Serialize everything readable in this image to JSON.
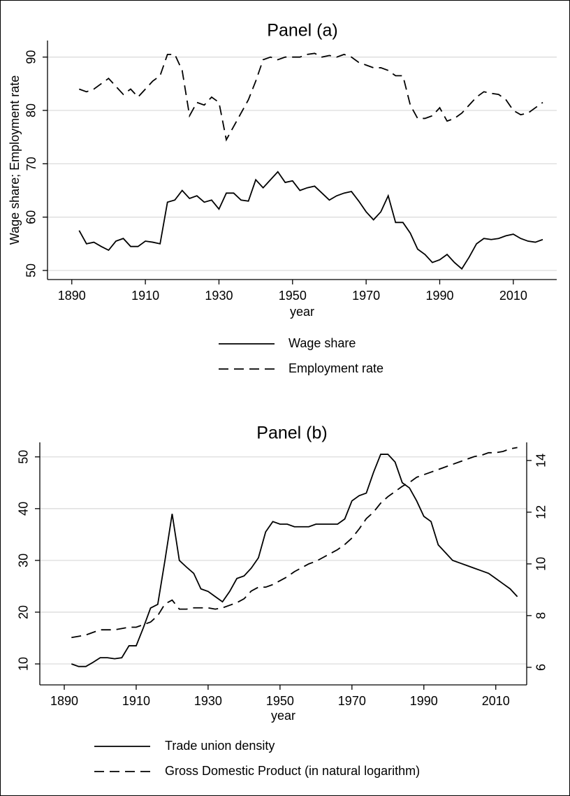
{
  "chart_data": [
    {
      "type": "line",
      "title": "Panel (a)",
      "x_label": "year",
      "y_label": "Wage share; Employment rate",
      "x": [
        1892,
        1894,
        1896,
        1898,
        1900,
        1902,
        1904,
        1906,
        1908,
        1910,
        1912,
        1914,
        1916,
        1918,
        1920,
        1922,
        1924,
        1926,
        1928,
        1930,
        1932,
        1934,
        1936,
        1938,
        1940,
        1942,
        1944,
        1946,
        1948,
        1950,
        1952,
        1954,
        1956,
        1958,
        1960,
        1962,
        1964,
        1966,
        1968,
        1970,
        1972,
        1974,
        1976,
        1978,
        1980,
        1982,
        1984,
        1986,
        1988,
        1990,
        1992,
        1994,
        1996,
        1998,
        2000,
        2002,
        2004,
        2006,
        2008,
        2010,
        2012,
        2014,
        2016,
        2018
      ],
      "series": [
        {
          "name": "Wage share",
          "color": "#000000",
          "style": "solid",
          "values": [
            57.5,
            55,
            55.3,
            54.5,
            53.8,
            55.5,
            56,
            54.5,
            54.5,
            55.5,
            55.3,
            55,
            62.8,
            63.2,
            65,
            63.5,
            64,
            62.8,
            63.2,
            61.5,
            64.5,
            64.5,
            63.2,
            63,
            67,
            65.5,
            67,
            68.5,
            66.5,
            66.8,
            65,
            65.5,
            65.8,
            64.5,
            63.2,
            64,
            64.5,
            64.8,
            63,
            61,
            59.5,
            61,
            64,
            59,
            59,
            57,
            54,
            53,
            51.5,
            52,
            53,
            51.5,
            50.3,
            52.5,
            55,
            56,
            55.8,
            56,
            56.5,
            56.8,
            56,
            55.5,
            55.3,
            55.8
          ]
        },
        {
          "name": "Employment rate",
          "color": "#000000",
          "style": "dashed",
          "values": [
            84,
            83.5,
            84,
            85,
            86,
            84.5,
            83,
            84,
            82.5,
            84,
            85.5,
            86.5,
            90.5,
            90.5,
            87.5,
            79,
            81.5,
            81,
            82.5,
            81.5,
            74.5,
            77,
            79.5,
            82,
            85.5,
            89.5,
            90,
            89.5,
            90,
            90,
            90,
            90.5,
            90.7,
            90,
            90.3,
            90,
            90.5,
            90,
            89,
            88.5,
            88,
            88,
            87.5,
            86.5,
            86.5,
            81,
            78.5,
            78.5,
            79,
            80.5,
            78,
            78.5,
            79.5,
            81,
            82.5,
            83.5,
            83.2,
            83,
            82,
            80,
            79.2,
            79.5,
            80.5,
            81.5
          ]
        }
      ],
      "xlim": [
        1883.4,
        2021.8
      ],
      "xticks": [
        1890,
        1910,
        1930,
        1950,
        1970,
        1990,
        2010
      ],
      "ylim": [
        48.3,
        93.1
      ],
      "yticks": [
        50,
        60,
        70,
        80,
        90
      ],
      "grid": true,
      "legend": "bottom"
    },
    {
      "type": "line",
      "title": "Panel (b)",
      "x_label": "year",
      "x": [
        1892,
        1894,
        1896,
        1898,
        1900,
        1902,
        1904,
        1906,
        1908,
        1910,
        1912,
        1914,
        1916,
        1918,
        1920,
        1922,
        1924,
        1926,
        1928,
        1930,
        1932,
        1934,
        1936,
        1938,
        1940,
        1942,
        1944,
        1946,
        1948,
        1950,
        1952,
        1954,
        1956,
        1958,
        1960,
        1962,
        1964,
        1966,
        1968,
        1970,
        1972,
        1974,
        1976,
        1978,
        1980,
        1982,
        1984,
        1986,
        1988,
        1990,
        1992,
        1994,
        1996,
        1998,
        2000,
        2002,
        2004,
        2006,
        2008,
        2010,
        2012,
        2014,
        2016
      ],
      "series": [
        {
          "name": "Trade union density",
          "color": "#000000",
          "style": "solid",
          "values": [
            10,
            9.5,
            9.5,
            10.3,
            11.2,
            11.2,
            11,
            11.2,
            13.5,
            13.5,
            17,
            20.8,
            21.5,
            30,
            39,
            30,
            28.7,
            27.5,
            24.5,
            24,
            23,
            22,
            24,
            26.5,
            27,
            28.5,
            30.5,
            35.5,
            37.5,
            37,
            37,
            36.5,
            36.5,
            36.5,
            37,
            37,
            37,
            37,
            38,
            41.5,
            42.5,
            43,
            47,
            50.5,
            50.5,
            49,
            45,
            44,
            41.5,
            38.5,
            37.5,
            33,
            31.5,
            30,
            29.5,
            29,
            28.5,
            28,
            27.5,
            26.5,
            25.5,
            24.5,
            23
          ]
        },
        {
          "name": "Gross Domestic Product (in natural logarithm)",
          "color": "#000000",
          "style": "dashed",
          "axis": "y2",
          "values": [
            7.15,
            7.2,
            7.25,
            7.35,
            7.45,
            7.45,
            7.45,
            7.5,
            7.55,
            7.55,
            7.65,
            7.75,
            8.0,
            8.45,
            8.6,
            8.25,
            8.25,
            8.3,
            8.3,
            8.3,
            8.25,
            8.3,
            8.4,
            8.5,
            8.65,
            8.95,
            9.1,
            9.1,
            9.2,
            9.35,
            9.5,
            9.7,
            9.85,
            10.0,
            10.1,
            10.25,
            10.4,
            10.55,
            10.75,
            11.0,
            11.35,
            11.75,
            12.0,
            12.35,
            12.6,
            12.8,
            13.0,
            13.15,
            13.35,
            13.45,
            13.55,
            13.65,
            13.75,
            13.85,
            13.95,
            14.05,
            14.15,
            14.2,
            14.3,
            14.3,
            14.35,
            14.45,
            14.5
          ]
        }
      ],
      "xlim": [
        1883.2,
        2018.6
      ],
      "xticks": [
        1890,
        1910,
        1930,
        1950,
        1970,
        1990,
        2010
      ],
      "ylim": [
        5.95,
        52.8
      ],
      "yticks": [
        10,
        20,
        30,
        40,
        50
      ],
      "y2lim": [
        5.32,
        14.7
      ],
      "y2ticks": [
        6,
        8,
        10,
        12,
        14
      ],
      "grid": true,
      "legend": "bottom"
    }
  ]
}
